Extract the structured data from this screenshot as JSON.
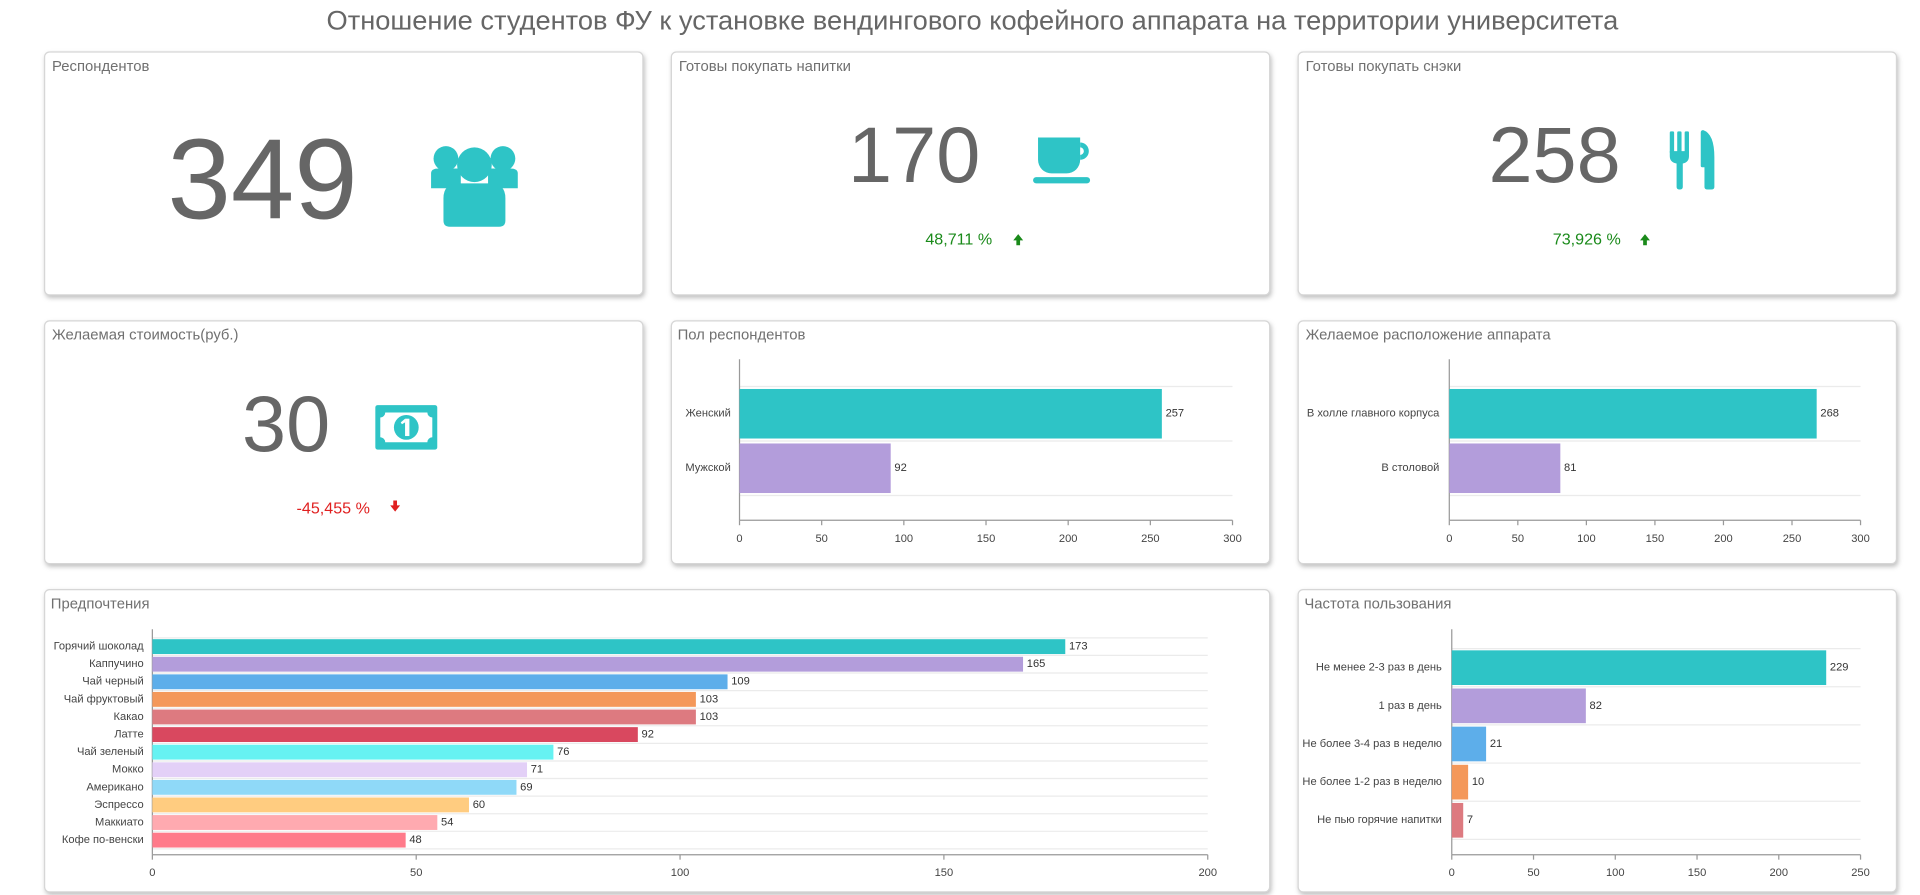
{
  "title": "Отношение студентов ФУ к установке вендингового кофейного аппарата на территории университета",
  "kpis": [
    {
      "title": "Респондентов",
      "value": 349
    },
    {
      "title": "Готовы покупать напитки",
      "value": 170,
      "change": "48,711 %"
    },
    {
      "title": "Готовы покупать снэки",
      "value": 258,
      "change": "73,926 %"
    },
    {
      "title": "Желаемая стоимость(руб.)",
      "value": 30,
      "change": "-45,455 %"
    }
  ],
  "chart_data": [
    {
      "type": "bar",
      "title": "Пол респондентов",
      "categories": [
        "Женский",
        "Мужской"
      ],
      "values": [
        257,
        92
      ],
      "colors": [
        "#2ec4c6",
        "#b39ddb"
      ],
      "xlim": [
        0,
        300
      ],
      "xticks": [
        0,
        50,
        100,
        150,
        200,
        250,
        300
      ]
    },
    {
      "type": "bar",
      "title": "Желаемое расположение аппарата",
      "categories": [
        "В холле главного корпуса",
        "В столовой"
      ],
      "values": [
        268,
        81
      ],
      "colors": [
        "#2ec4c6",
        "#b39ddb"
      ],
      "xlim": [
        0,
        300
      ],
      "xticks": [
        0,
        50,
        100,
        150,
        200,
        250,
        300
      ]
    },
    {
      "type": "bar",
      "title": "Предпочтения",
      "categories": [
        "Горячий шоколад",
        "Каппучино",
        "Чай черный",
        "Чай фруктовый",
        "Какао",
        "Латте",
        "Чай зеленый",
        "Мокко",
        "Американо",
        "Эспрессо",
        "Маккиато",
        "Кофе по-венски"
      ],
      "values": [
        173,
        165,
        109,
        103,
        103,
        92,
        76,
        71,
        69,
        60,
        54,
        48
      ],
      "colors": [
        "#2ec4c6",
        "#b39ddb",
        "#5daeea",
        "#f4985a",
        "#dd7a80",
        "#d9485f",
        "#66f2f2",
        "#e3d0f7",
        "#8fd9f8",
        "#ffcc80",
        "#ffaab0",
        "#ff7a8a"
      ],
      "xlim": [
        0,
        200
      ],
      "xticks": [
        0,
        50,
        100,
        150,
        200
      ]
    },
    {
      "type": "bar",
      "title": "Частота пользования",
      "categories": [
        "Не менее 2-3 раз в день",
        "1 раз в день",
        "Не более 3-4 раз в неделю",
        "Не более 1-2 раз в неделю",
        "Не пью горячие напитки"
      ],
      "values": [
        229,
        82,
        21,
        10,
        7
      ],
      "colors": [
        "#2ec4c6",
        "#b39ddb",
        "#5daeea",
        "#f4985a",
        "#dd7a80"
      ],
      "xlim": [
        0,
        250
      ],
      "xticks": [
        0,
        50,
        100,
        150,
        200,
        250
      ]
    }
  ]
}
